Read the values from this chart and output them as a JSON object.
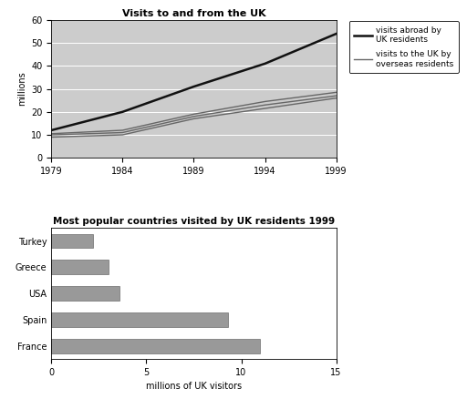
{
  "line_chart": {
    "title": "Visits to and from the UK",
    "ylabel": "millions",
    "years": [
      1979,
      1984,
      1989,
      1994,
      1999
    ],
    "visits_abroad": [
      12,
      20,
      31,
      41,
      54
    ],
    "visits_to_uk_1": [
      9,
      10.0,
      17,
      21.5,
      26
    ],
    "visits_to_uk_2": [
      10,
      11.0,
      18,
      23.0,
      27
    ],
    "visits_to_uk_3": [
      10.5,
      12.0,
      19,
      24.5,
      28.5
    ],
    "ylim": [
      0,
      60
    ],
    "yticks": [
      0,
      10,
      20,
      30,
      40,
      50,
      60
    ],
    "xticks": [
      1979,
      1984,
      1989,
      1994,
      1999
    ],
    "legend_abroad": "visits abroad by\nUK residents",
    "legend_to_uk": "visits to the UK by\noverseas residents",
    "line_color_abroad": "#111111",
    "line_color_to_uk": "#666666",
    "bg_color": "#cccccc"
  },
  "bar_chart": {
    "title": "Most popular countries visited by UK residents 1999",
    "xlabel": "millions of UK visitors",
    "countries": [
      "Turkey",
      "Greece",
      "USA",
      "Spain",
      "France"
    ],
    "values": [
      2.2,
      3.0,
      3.6,
      9.3,
      11.0
    ],
    "bar_color": "#999999",
    "xlim": [
      0,
      15
    ],
    "xticks": [
      0,
      5,
      10,
      15
    ],
    "bg_color": "#ffffff"
  }
}
